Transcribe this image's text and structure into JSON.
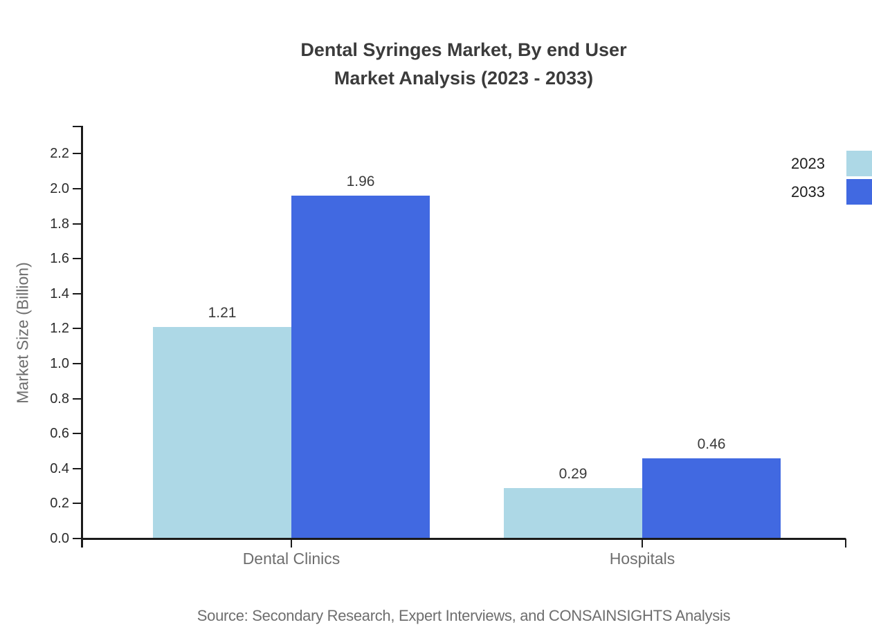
{
  "chart_data": {
    "type": "bar",
    "title_lines": [
      "Dental Syringes Market, By end User",
      "Market Analysis (2023 - 2033)"
    ],
    "categories": [
      "Dental Clinics",
      "Hospitals"
    ],
    "series": [
      {
        "name": "2023",
        "color": "#ADD8E6",
        "values": [
          1.21,
          0.29
        ]
      },
      {
        "name": "2033",
        "color": "#4169E1",
        "values": [
          1.96,
          0.46
        ]
      }
    ],
    "ylabel": "Market Size (Billion)",
    "yticks": [
      "0.0",
      "0.2",
      "0.4",
      "0.6",
      "0.8",
      "1.0",
      "1.2",
      "1.4",
      "1.6",
      "1.8",
      "2.0",
      "2.2"
    ],
    "ylim": [
      0,
      2.37
    ],
    "grid": false,
    "legend_position": "top-right",
    "value_label_decimals": 2,
    "source": "Source: Secondary Research, Expert Interviews, and CONSAINSIGHTS Analysis"
  },
  "colors": {
    "axis": "#1a1a1a",
    "title_text": "#3b3b3b",
    "tick_text": "#2b2b2b",
    "muted_text": "#6e6e6e"
  }
}
